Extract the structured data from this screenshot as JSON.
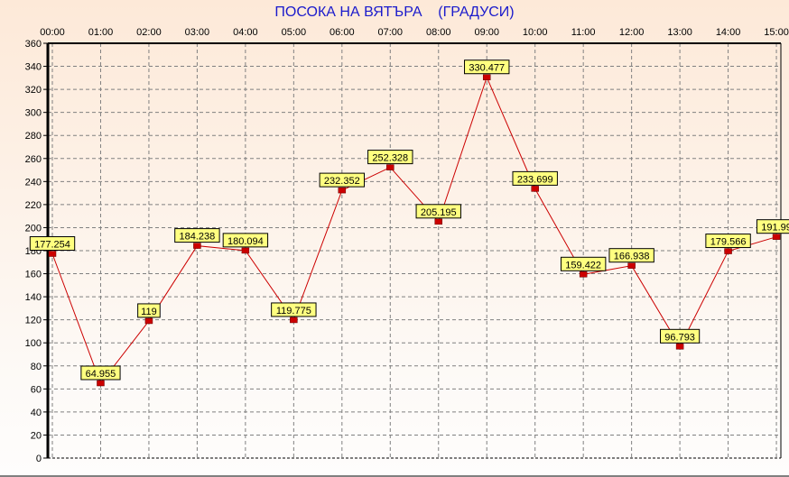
{
  "chart_data": {
    "type": "line",
    "title": "ПОСОКА НА ВЯТЪРА    (ГРАДУСИ)",
    "categories": [
      "00:00",
      "01:00",
      "02:00",
      "03:00",
      "04:00",
      "05:00",
      "06:00",
      "07:00",
      "08:00",
      "09:00",
      "10:00",
      "11:00",
      "12:00",
      "13:00",
      "14:00",
      "15:00"
    ],
    "series": [
      {
        "values": [
          177.254,
          64.955,
          119,
          184.238,
          180.094,
          119.775,
          232.352,
          252.328,
          205.195,
          330.477,
          233.699,
          159.422,
          166.938,
          96.793,
          179.566,
          191.99
        ]
      }
    ],
    "labels": [
      "177.254",
      "64.955",
      "119",
      "184.238",
      "180.094",
      "119.775",
      "232.352",
      "252.328",
      "205.195",
      "330.477",
      "233.699",
      "159.422",
      "166.938",
      "96.793",
      "179.566",
      "191.99"
    ],
    "ylim": [
      0,
      360
    ],
    "yticks": [
      0,
      20,
      40,
      60,
      80,
      100,
      120,
      140,
      160,
      180,
      200,
      220,
      240,
      260,
      280,
      300,
      320,
      340,
      360
    ],
    "xaxis_position": "top",
    "grid": true,
    "colors": {
      "line": "#cc0000",
      "marker": "#cc0000",
      "label_bg": "#ffff80",
      "title": "#1a1acc",
      "grid": "#808080"
    }
  }
}
